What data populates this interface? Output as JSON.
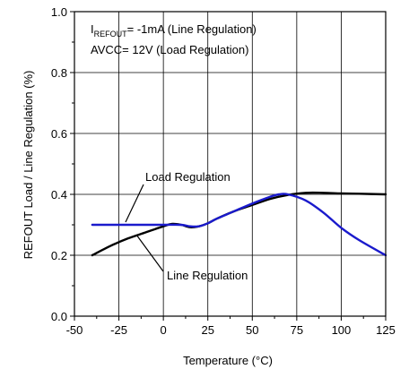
{
  "chart_data": {
    "type": "line",
    "title": "",
    "xlabel": "Temperature (°C)",
    "ylabel": "REFOUT Load / Line Regulation (%)",
    "xlim": [
      -50,
      125
    ],
    "ylim": [
      0.0,
      1.0
    ],
    "x_ticks": [
      -50,
      -25,
      0,
      25,
      50,
      75,
      100,
      125
    ],
    "x_tick_labels": [
      "-50",
      "-25",
      "0",
      "25",
      "50",
      "75",
      "100",
      "125"
    ],
    "y_ticks": [
      0.0,
      0.2,
      0.4,
      0.6,
      0.8,
      1.0
    ],
    "y_tick_labels": [
      "0.0",
      "0.2",
      "0.4",
      "0.6",
      "0.8",
      "1.0"
    ],
    "grid": true,
    "annotations": {
      "condition_line1_prefix": "I",
      "condition_line1_sub": "REFOUT",
      "condition_line1_rest": "= -1mA (Line Regulation)",
      "condition_line2": "AVCC= 12V (Load Regulation)"
    },
    "series": [
      {
        "name": "Load Regulation",
        "color": "#000000",
        "x": [
          -40,
          -30,
          -20,
          -10,
          0,
          5,
          10,
          15,
          20,
          25,
          30,
          40,
          50,
          60,
          70,
          80,
          90,
          100,
          110,
          125
        ],
        "y": [
          0.2,
          0.23,
          0.255,
          0.275,
          0.295,
          0.303,
          0.3,
          0.292,
          0.295,
          0.305,
          0.32,
          0.345,
          0.365,
          0.385,
          0.398,
          0.405,
          0.405,
          0.403,
          0.402,
          0.4
        ]
      },
      {
        "name": "Line Regulation",
        "color": "#1a1acc",
        "x": [
          -40,
          -30,
          -20,
          -10,
          0,
          10,
          15,
          20,
          25,
          30,
          40,
          50,
          60,
          65,
          70,
          80,
          90,
          100,
          110,
          125
        ],
        "y": [
          0.3,
          0.3,
          0.3,
          0.3,
          0.3,
          0.3,
          0.295,
          0.295,
          0.305,
          0.32,
          0.345,
          0.37,
          0.392,
          0.4,
          0.4,
          0.38,
          0.34,
          0.29,
          0.25,
          0.2
        ]
      }
    ]
  }
}
